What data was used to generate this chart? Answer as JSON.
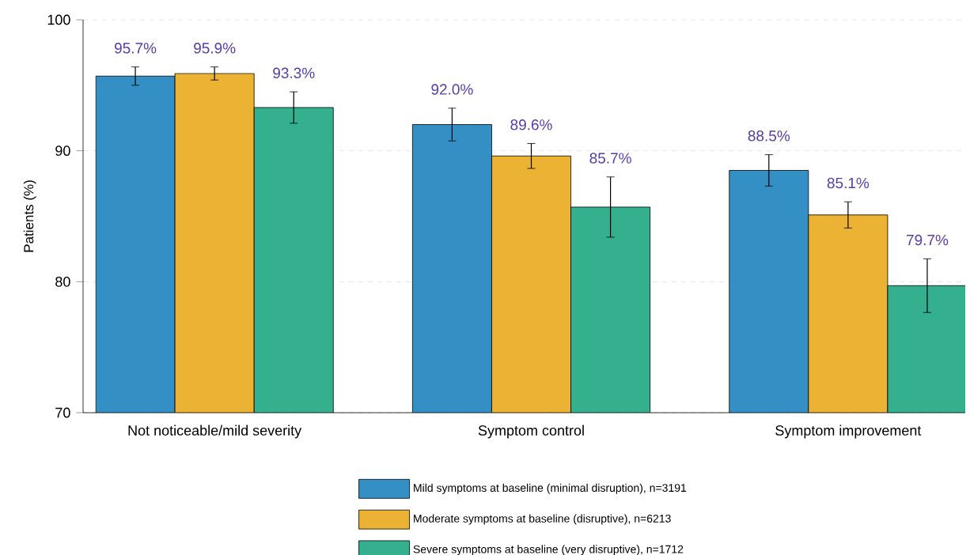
{
  "chart_data": {
    "type": "bar",
    "ylabel": "Patients (%)",
    "categories": [
      "Not noticeable/mild severity",
      "Symptom control",
      "Symptom improvement"
    ],
    "series": [
      {
        "name": "Mild symptoms at baseline (minimal disruption), n=3191",
        "color": "#348fc4",
        "values": [
          95.7,
          92.0,
          88.5
        ],
        "errors": [
          0.7,
          1.25,
          1.2
        ],
        "value_labels": [
          "95.7%",
          "92.0%",
          "88.5%"
        ]
      },
      {
        "name": "Moderate symptoms at baseline (disruptive), n=6213",
        "color": "#ecb234",
        "values": [
          95.9,
          89.6,
          85.1
        ],
        "errors": [
          0.5,
          0.95,
          1.0
        ],
        "value_labels": [
          "95.9%",
          "89.6%",
          "85.1%"
        ]
      },
      {
        "name": "Severe symptoms at baseline (very disruptive), n=1712",
        "color": "#34b08f",
        "values": [
          93.3,
          85.7,
          79.7
        ],
        "errors": [
          1.2,
          2.3,
          2.05
        ],
        "value_labels": [
          "93.3%",
          "85.7%",
          "79.7%"
        ]
      }
    ],
    "ylim": [
      70,
      100
    ],
    "yticks": [
      70,
      80,
      90,
      100
    ],
    "grid": "y",
    "legend": "bottom"
  }
}
